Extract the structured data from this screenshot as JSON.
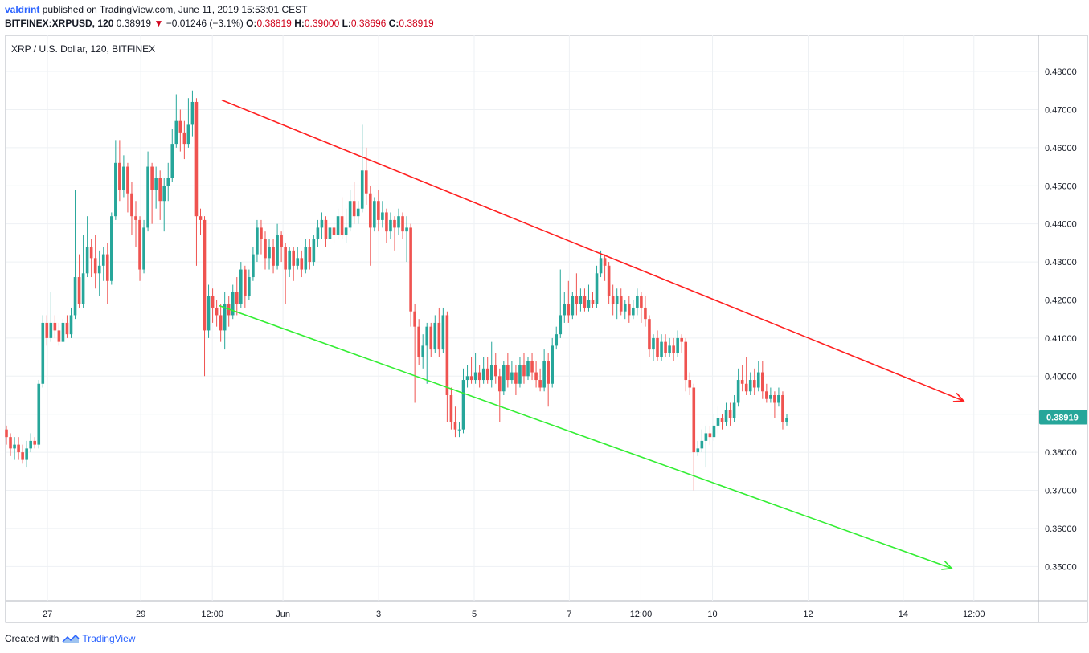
{
  "header": {
    "publisher": "valdrint",
    "published_text": "published on TradingView.com, June 11, 2019 15:53:01 CEST",
    "symbol": "BITFINEX:XRPUSD, 120",
    "last": "0.38919",
    "change": "−0.01246 (−3.1%)",
    "o_label": "O:",
    "o": "0.38819",
    "h_label": "H:",
    "h": "0.39000",
    "l_label": "L:",
    "l": "0.38696",
    "c_label": "C:",
    "c": "0.38919"
  },
  "footer": {
    "created_with": "Created with",
    "brand": "TradingView"
  },
  "colors": {
    "up": "#26a69a",
    "down": "#ef5350",
    "resistance": "#ff2020",
    "support": "#33ee33",
    "grid": "#eef1f4",
    "price_label_bg": "#26a69a"
  },
  "chart_data": {
    "type": "candlestick",
    "title": "XRP / U.S. Dollar, 120, BITFINEX",
    "ylim": [
      0.341,
      0.4895
    ],
    "y_ticks": [
      "0.48000",
      "0.47000",
      "0.46000",
      "0.45000",
      "0.44000",
      "0.43000",
      "0.42000",
      "0.41000",
      "0.40000",
      "0.39000",
      "0.38000",
      "0.37000",
      "0.36000",
      "0.35000"
    ],
    "x_ticks": [
      "27",
      "29",
      "12:00",
      "Jun",
      "3",
      "5",
      "7",
      "12:00",
      "10",
      "12",
      "14",
      "12:00"
    ],
    "current_price": "0.38919",
    "trendlines": [
      {
        "name": "resistance",
        "points": [
          [
            2.0,
            0.4725
          ],
          [
            11.6,
            0.3935
          ]
        ],
        "arrow": true
      },
      {
        "name": "support",
        "points": [
          [
            1.95,
            0.4185
          ],
          [
            11.35,
            0.3495
          ]
        ],
        "arrow": true
      }
    ],
    "candles": [
      [
        0.386,
        0.384,
        0.387,
        0.382
      ],
      [
        0.384,
        0.381,
        0.385,
        0.379
      ],
      [
        0.381,
        0.382,
        0.384,
        0.378
      ],
      [
        0.382,
        0.38,
        0.384,
        0.378
      ],
      [
        0.38,
        0.378,
        0.382,
        0.377
      ],
      [
        0.378,
        0.381,
        0.383,
        0.376
      ],
      [
        0.381,
        0.383,
        0.385,
        0.38
      ],
      [
        0.383,
        0.382,
        0.384,
        0.381
      ],
      [
        0.382,
        0.398,
        0.399,
        0.381
      ],
      [
        0.398,
        0.414,
        0.416,
        0.397
      ],
      [
        0.414,
        0.41,
        0.416,
        0.408
      ],
      [
        0.41,
        0.414,
        0.422,
        0.409
      ],
      [
        0.414,
        0.412,
        0.416,
        0.41
      ],
      [
        0.412,
        0.409,
        0.414,
        0.408
      ],
      [
        0.409,
        0.414,
        0.415,
        0.409
      ],
      [
        0.414,
        0.411,
        0.416,
        0.41
      ],
      [
        0.411,
        0.416,
        0.418,
        0.41
      ],
      [
        0.416,
        0.426,
        0.449,
        0.415
      ],
      [
        0.426,
        0.419,
        0.432,
        0.418
      ],
      [
        0.419,
        0.427,
        0.437,
        0.418
      ],
      [
        0.427,
        0.434,
        0.442,
        0.426
      ],
      [
        0.434,
        0.431,
        0.436,
        0.426
      ],
      [
        0.431,
        0.427,
        0.437,
        0.423
      ],
      [
        0.427,
        0.429,
        0.433,
        0.421
      ],
      [
        0.429,
        0.432,
        0.434,
        0.425
      ],
      [
        0.432,
        0.425,
        0.435,
        0.419
      ],
      [
        0.425,
        0.442,
        0.443,
        0.424
      ],
      [
        0.442,
        0.456,
        0.462,
        0.441
      ],
      [
        0.456,
        0.449,
        0.462,
        0.446
      ],
      [
        0.449,
        0.455,
        0.458,
        0.447
      ],
      [
        0.455,
        0.448,
        0.456,
        0.443
      ],
      [
        0.448,
        0.442,
        0.451,
        0.437
      ],
      [
        0.442,
        0.441,
        0.446,
        0.434
      ],
      [
        0.441,
        0.428,
        0.442,
        0.425
      ],
      [
        0.428,
        0.439,
        0.441,
        0.427
      ],
      [
        0.439,
        0.455,
        0.459,
        0.438
      ],
      [
        0.455,
        0.449,
        0.456,
        0.44
      ],
      [
        0.449,
        0.452,
        0.455,
        0.444
      ],
      [
        0.452,
        0.446,
        0.454,
        0.441
      ],
      [
        0.446,
        0.45,
        0.452,
        0.438
      ],
      [
        0.45,
        0.452,
        0.456,
        0.446
      ],
      [
        0.452,
        0.461,
        0.465,
        0.451
      ],
      [
        0.461,
        0.467,
        0.474,
        0.46
      ],
      [
        0.467,
        0.464,
        0.47,
        0.459
      ],
      [
        0.464,
        0.461,
        0.467,
        0.457
      ],
      [
        0.461,
        0.466,
        0.473,
        0.46
      ],
      [
        0.466,
        0.472,
        0.475,
        0.463
      ],
      [
        0.472,
        0.442,
        0.473,
        0.429
      ],
      [
        0.442,
        0.441,
        0.444,
        0.437
      ],
      [
        0.441,
        0.412,
        0.442,
        0.4
      ],
      [
        0.412,
        0.421,
        0.424,
        0.41
      ],
      [
        0.421,
        0.418,
        0.423,
        0.414
      ],
      [
        0.418,
        0.416,
        0.42,
        0.413
      ],
      [
        0.416,
        0.412,
        0.419,
        0.409
      ],
      [
        0.412,
        0.419,
        0.422,
        0.407
      ],
      [
        0.419,
        0.416,
        0.421,
        0.413
      ],
      [
        0.416,
        0.422,
        0.424,
        0.415
      ],
      [
        0.422,
        0.419,
        0.426,
        0.416
      ],
      [
        0.419,
        0.428,
        0.43,
        0.418
      ],
      [
        0.428,
        0.421,
        0.429,
        0.418
      ],
      [
        0.421,
        0.426,
        0.428,
        0.42
      ],
      [
        0.426,
        0.432,
        0.434,
        0.425
      ],
      [
        0.432,
        0.439,
        0.441,
        0.43
      ],
      [
        0.439,
        0.436,
        0.441,
        0.432
      ],
      [
        0.436,
        0.431,
        0.438,
        0.428
      ],
      [
        0.431,
        0.434,
        0.436,
        0.428
      ],
      [
        0.434,
        0.429,
        0.436,
        0.427
      ],
      [
        0.429,
        0.437,
        0.44,
        0.428
      ],
      [
        0.437,
        0.434,
        0.438,
        0.43
      ],
      [
        0.434,
        0.428,
        0.435,
        0.419
      ],
      [
        0.428,
        0.433,
        0.434,
        0.426
      ],
      [
        0.433,
        0.429,
        0.434,
        0.425
      ],
      [
        0.429,
        0.431,
        0.434,
        0.428
      ],
      [
        0.431,
        0.428,
        0.433,
        0.426
      ],
      [
        0.428,
        0.434,
        0.436,
        0.427
      ],
      [
        0.434,
        0.43,
        0.436,
        0.428
      ],
      [
        0.43,
        0.436,
        0.437,
        0.429
      ],
      [
        0.436,
        0.439,
        0.441,
        0.434
      ],
      [
        0.439,
        0.441,
        0.443,
        0.436
      ],
      [
        0.441,
        0.436,
        0.442,
        0.434
      ],
      [
        0.436,
        0.439,
        0.442,
        0.435
      ],
      [
        0.439,
        0.437,
        0.441,
        0.435
      ],
      [
        0.437,
        0.442,
        0.444,
        0.436
      ],
      [
        0.442,
        0.437,
        0.447,
        0.436
      ],
      [
        0.437,
        0.439,
        0.444,
        0.435
      ],
      [
        0.439,
        0.446,
        0.449,
        0.438
      ],
      [
        0.446,
        0.442,
        0.451,
        0.44
      ],
      [
        0.442,
        0.444,
        0.446,
        0.44
      ],
      [
        0.444,
        0.454,
        0.466,
        0.443
      ],
      [
        0.454,
        0.448,
        0.46,
        0.445
      ],
      [
        0.448,
        0.439,
        0.45,
        0.429
      ],
      [
        0.439,
        0.446,
        0.447,
        0.438
      ],
      [
        0.446,
        0.441,
        0.449,
        0.438
      ],
      [
        0.441,
        0.443,
        0.446,
        0.439
      ],
      [
        0.443,
        0.438,
        0.444,
        0.435
      ],
      [
        0.438,
        0.441,
        0.443,
        0.436
      ],
      [
        0.441,
        0.439,
        0.442,
        0.433
      ],
      [
        0.439,
        0.442,
        0.444,
        0.437
      ],
      [
        0.442,
        0.438,
        0.443,
        0.436
      ],
      [
        0.438,
        0.439,
        0.442,
        0.43
      ],
      [
        0.439,
        0.417,
        0.44,
        0.413
      ],
      [
        0.417,
        0.413,
        0.419,
        0.393
      ],
      [
        0.413,
        0.405,
        0.415,
        0.403
      ],
      [
        0.405,
        0.408,
        0.411,
        0.402
      ],
      [
        0.408,
        0.413,
        0.414,
        0.398
      ],
      [
        0.413,
        0.407,
        0.414,
        0.405
      ],
      [
        0.407,
        0.414,
        0.416,
        0.406
      ],
      [
        0.414,
        0.407,
        0.418,
        0.405
      ],
      [
        0.407,
        0.416,
        0.418,
        0.406
      ],
      [
        0.416,
        0.395,
        0.417,
        0.388
      ],
      [
        0.395,
        0.388,
        0.397,
        0.386
      ],
      [
        0.388,
        0.386,
        0.392,
        0.384
      ],
      [
        0.386,
        0.386,
        0.388,
        0.384
      ],
      [
        0.386,
        0.399,
        0.402,
        0.385
      ],
      [
        0.399,
        0.4,
        0.403,
        0.397
      ],
      [
        0.4,
        0.399,
        0.405,
        0.398
      ],
      [
        0.399,
        0.401,
        0.406,
        0.398
      ],
      [
        0.401,
        0.399,
        0.403,
        0.397
      ],
      [
        0.399,
        0.402,
        0.405,
        0.398
      ],
      [
        0.402,
        0.399,
        0.405,
        0.398
      ],
      [
        0.399,
        0.403,
        0.409,
        0.397
      ],
      [
        0.403,
        0.4,
        0.406,
        0.398
      ],
      [
        0.4,
        0.396,
        0.402,
        0.388
      ],
      [
        0.396,
        0.403,
        0.404,
        0.395
      ],
      [
        0.403,
        0.399,
        0.406,
        0.397
      ],
      [
        0.399,
        0.401,
        0.404,
        0.398
      ],
      [
        0.401,
        0.398,
        0.403,
        0.395
      ],
      [
        0.398,
        0.403,
        0.405,
        0.397
      ],
      [
        0.403,
        0.4,
        0.406,
        0.398
      ],
      [
        0.4,
        0.404,
        0.405,
        0.399
      ],
      [
        0.404,
        0.401,
        0.406,
        0.399
      ],
      [
        0.401,
        0.399,
        0.404,
        0.397
      ],
      [
        0.399,
        0.397,
        0.402,
        0.396
      ],
      [
        0.397,
        0.404,
        0.407,
        0.396
      ],
      [
        0.404,
        0.398,
        0.406,
        0.392
      ],
      [
        0.398,
        0.408,
        0.41,
        0.397
      ],
      [
        0.408,
        0.411,
        0.413,
        0.407
      ],
      [
        0.411,
        0.416,
        0.428,
        0.41
      ],
      [
        0.416,
        0.419,
        0.422,
        0.414
      ],
      [
        0.419,
        0.416,
        0.425,
        0.414
      ],
      [
        0.416,
        0.421,
        0.422,
        0.415
      ],
      [
        0.421,
        0.419,
        0.427,
        0.416
      ],
      [
        0.419,
        0.421,
        0.423,
        0.417
      ],
      [
        0.421,
        0.418,
        0.423,
        0.417
      ],
      [
        0.418,
        0.42,
        0.424,
        0.417
      ],
      [
        0.42,
        0.419,
        0.422,
        0.418
      ],
      [
        0.419,
        0.427,
        0.429,
        0.418
      ],
      [
        0.427,
        0.431,
        0.433,
        0.426
      ],
      [
        0.431,
        0.429,
        0.432,
        0.425
      ],
      [
        0.429,
        0.421,
        0.43,
        0.419
      ],
      [
        0.421,
        0.419,
        0.424,
        0.416
      ],
      [
        0.419,
        0.421,
        0.423,
        0.415
      ],
      [
        0.421,
        0.417,
        0.423,
        0.416
      ],
      [
        0.417,
        0.419,
        0.42,
        0.415
      ],
      [
        0.419,
        0.416,
        0.421,
        0.414
      ],
      [
        0.416,
        0.418,
        0.42,
        0.415
      ],
      [
        0.418,
        0.421,
        0.423,
        0.416
      ],
      [
        0.421,
        0.418,
        0.422,
        0.414
      ],
      [
        0.418,
        0.415,
        0.421,
        0.413
      ],
      [
        0.415,
        0.407,
        0.416,
        0.405
      ],
      [
        0.407,
        0.41,
        0.411,
        0.404
      ],
      [
        0.41,
        0.405,
        0.412,
        0.404
      ],
      [
        0.405,
        0.409,
        0.411,
        0.404
      ],
      [
        0.409,
        0.406,
        0.411,
        0.405
      ],
      [
        0.406,
        0.408,
        0.41,
        0.405
      ],
      [
        0.408,
        0.406,
        0.41,
        0.404
      ],
      [
        0.406,
        0.41,
        0.412,
        0.405
      ],
      [
        0.41,
        0.409,
        0.411,
        0.406
      ],
      [
        0.409,
        0.399,
        0.41,
        0.396
      ],
      [
        0.399,
        0.397,
        0.401,
        0.395
      ],
      [
        0.397,
        0.38,
        0.398,
        0.37
      ],
      [
        0.38,
        0.381,
        0.383,
        0.379
      ],
      [
        0.381,
        0.383,
        0.386,
        0.38
      ],
      [
        0.383,
        0.385,
        0.387,
        0.376
      ],
      [
        0.385,
        0.384,
        0.387,
        0.382
      ],
      [
        0.384,
        0.387,
        0.39,
        0.383
      ],
      [
        0.387,
        0.389,
        0.392,
        0.385
      ],
      [
        0.389,
        0.388,
        0.39,
        0.386
      ],
      [
        0.388,
        0.391,
        0.393,
        0.387
      ],
      [
        0.391,
        0.389,
        0.393,
        0.387
      ],
      [
        0.389,
        0.393,
        0.395,
        0.388
      ],
      [
        0.393,
        0.399,
        0.402,
        0.392
      ],
      [
        0.399,
        0.398,
        0.403,
        0.396
      ],
      [
        0.398,
        0.396,
        0.405,
        0.395
      ],
      [
        0.396,
        0.399,
        0.401,
        0.395
      ],
      [
        0.399,
        0.397,
        0.402,
        0.395
      ],
      [
        0.397,
        0.401,
        0.404,
        0.396
      ],
      [
        0.401,
        0.396,
        0.404,
        0.394
      ],
      [
        0.396,
        0.394,
        0.398,
        0.393
      ],
      [
        0.394,
        0.395,
        0.397,
        0.393
      ],
      [
        0.395,
        0.393,
        0.396,
        0.389
      ],
      [
        0.393,
        0.395,
        0.397,
        0.392
      ],
      [
        0.395,
        0.388,
        0.396,
        0.386
      ],
      [
        0.388,
        0.389,
        0.39,
        0.387
      ]
    ]
  }
}
